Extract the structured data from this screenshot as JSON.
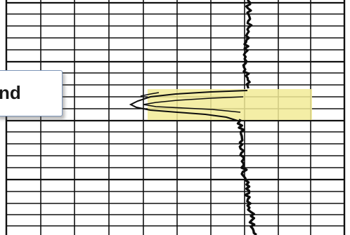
{
  "callout": {
    "label": "nd"
  },
  "colors": {
    "paper": "#ffffff",
    "grid": "#111111",
    "trace": "#0d0d0d",
    "highlight": "#f2eb97",
    "callout_border": "#7d95b8",
    "callout_text": "#1a1a1a"
  }
}
